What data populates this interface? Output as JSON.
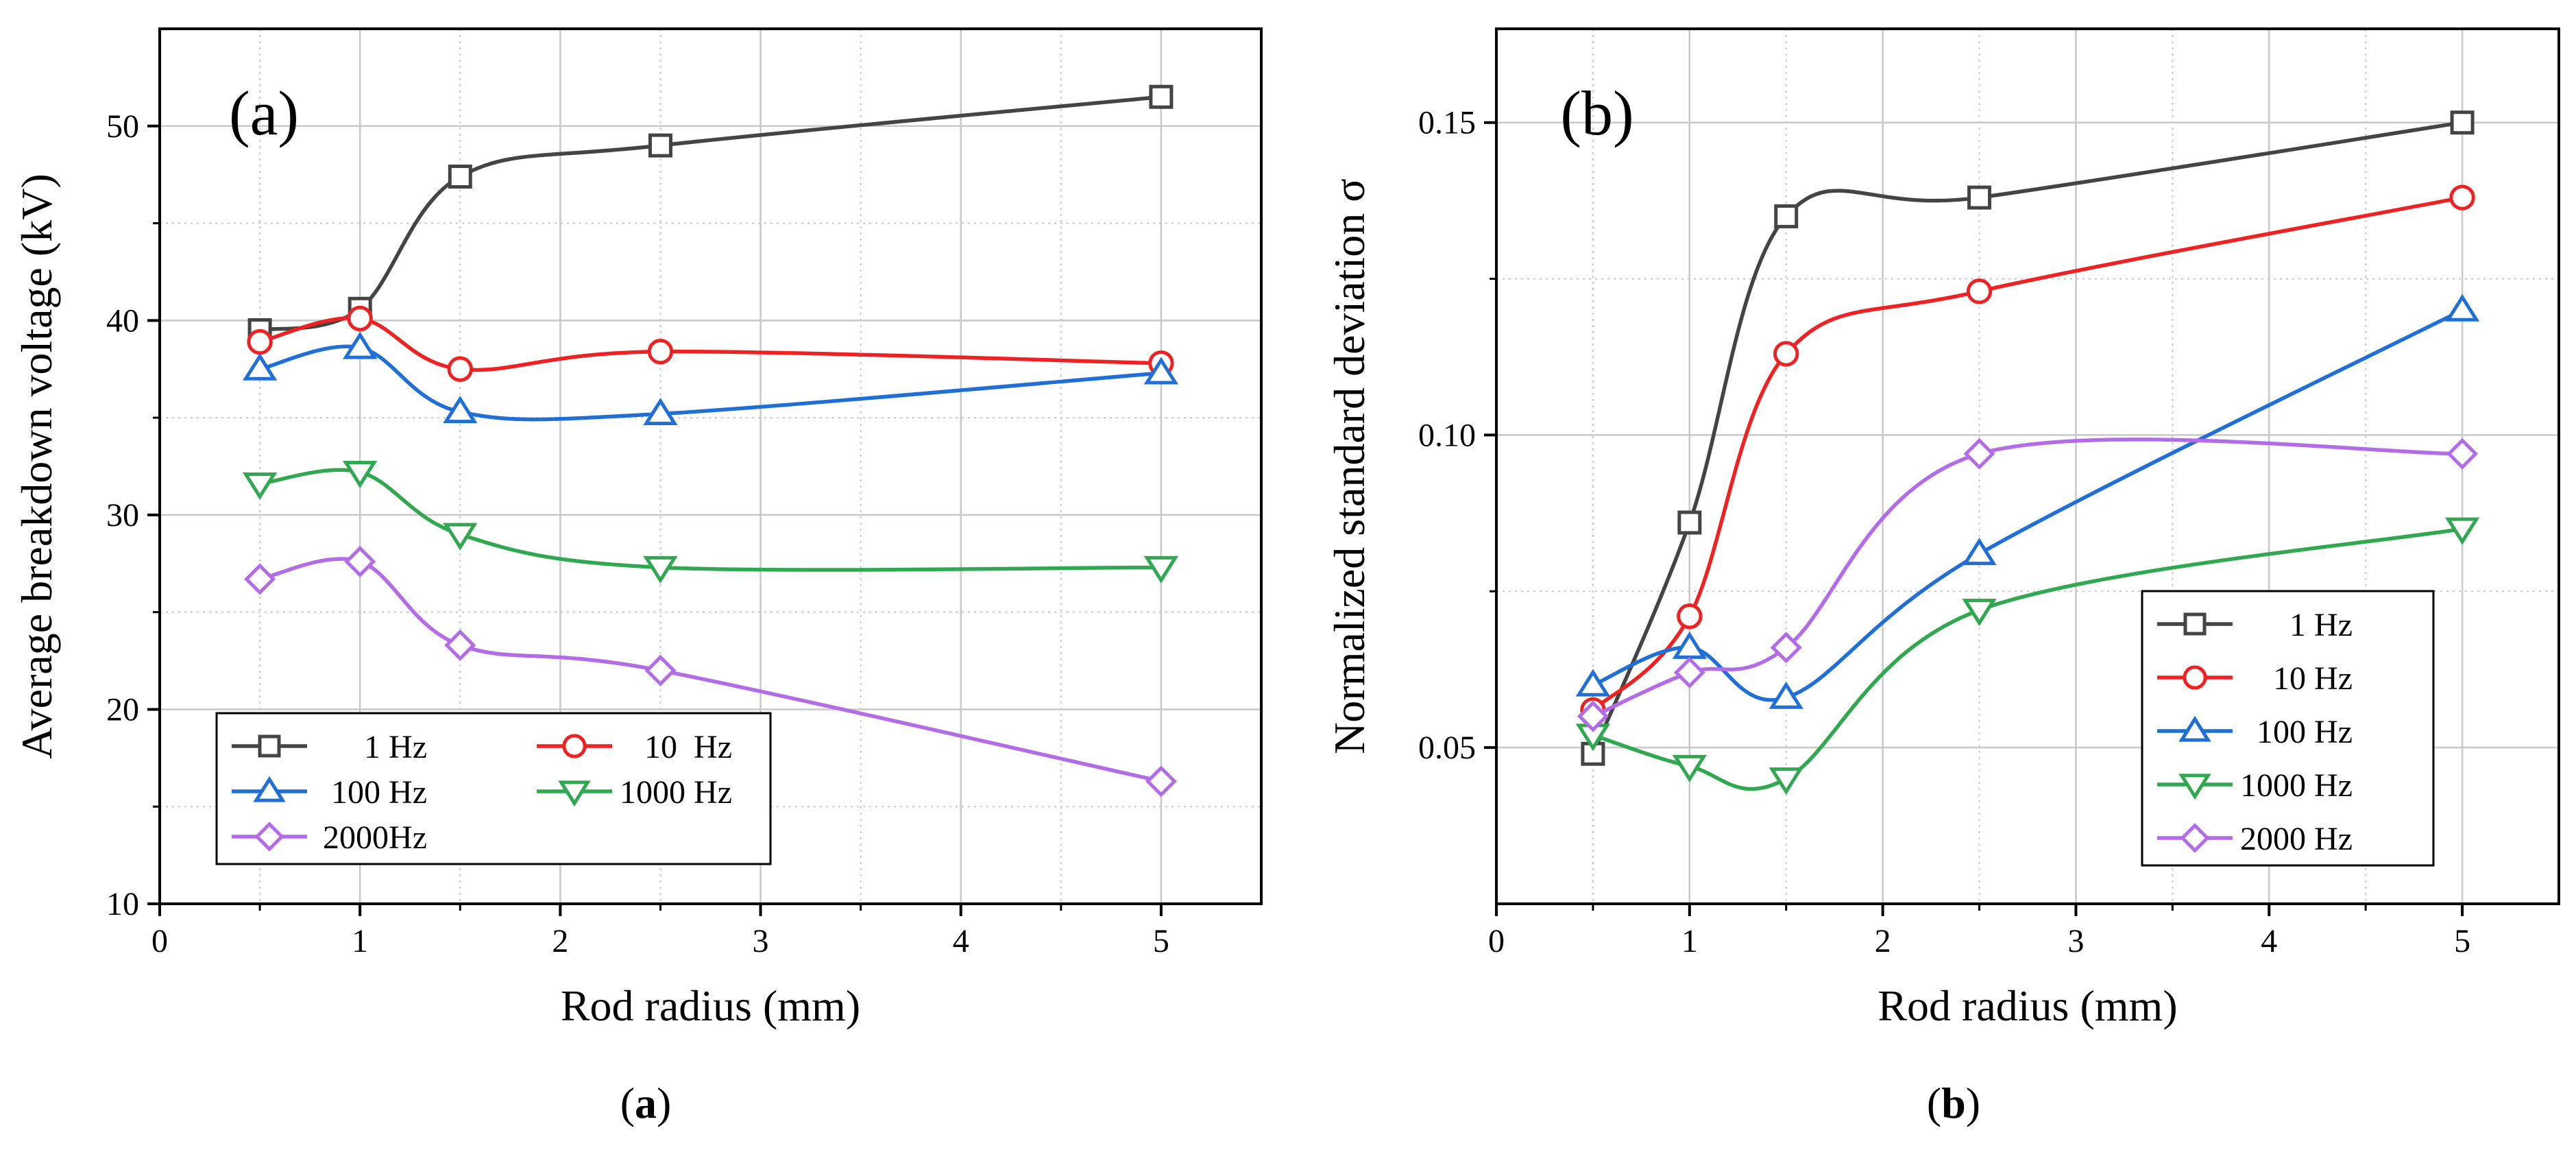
{
  "colors": {
    "1 Hz": "#444444",
    "10 Hz": "#ee2222",
    "100 Hz": "#1f6fd6",
    "1000 Hz": "#2fa84f",
    "2000 Hz": "#b36be8",
    "axis": "#000000",
    "grid": "#c8c8c8"
  },
  "chart_data": [
    {
      "type": "line",
      "panel_label": "(a)",
      "caption": "(a)",
      "title": "",
      "xlabel": "Rod radius (mm)",
      "ylabel": "Average breakdown voltage (kV)",
      "xlim": [
        0,
        5.5
      ],
      "ylim": [
        10,
        55
      ],
      "xticks": [
        0,
        1,
        2,
        3,
        4,
        5
      ],
      "yticks": [
        10,
        20,
        30,
        40,
        50
      ],
      "grid": true,
      "legend_position": "bottom-left",
      "x": [
        0.5,
        1,
        1.5,
        2.5,
        5
      ],
      "series": [
        {
          "name": "1 Hz",
          "legend_label": "1 Hz",
          "marker": "square",
          "values": [
            39.5,
            40.6,
            47.4,
            49.0,
            51.5
          ]
        },
        {
          "name": "10 Hz",
          "legend_label": "10  Hz",
          "marker": "circle",
          "values": [
            38.9,
            40.1,
            37.5,
            38.4,
            37.8
          ]
        },
        {
          "name": "100 Hz",
          "legend_label": "100 Hz",
          "marker": "triangle-up",
          "values": [
            37.5,
            38.6,
            35.3,
            35.2,
            37.3
          ]
        },
        {
          "name": "1000 Hz",
          "legend_label": "1000 Hz",
          "marker": "triangle-down",
          "values": [
            31.6,
            32.2,
            29.0,
            27.3,
            27.3
          ]
        },
        {
          "name": "2000 Hz",
          "legend_label": "2000Hz",
          "marker": "diamond",
          "values": [
            26.7,
            27.6,
            23.3,
            22.0,
            16.3
          ]
        }
      ]
    },
    {
      "type": "line",
      "panel_label": "(b)",
      "caption": "(b)",
      "title": "",
      "xlabel": "Rod radius (mm)",
      "ylabel": "Normalized standard deviation σ",
      "xlim": [
        0,
        5.5
      ],
      "ylim": [
        0.025,
        0.165
      ],
      "xticks": [
        0,
        1,
        2,
        3,
        4,
        5
      ],
      "yticks": [
        0.05,
        0.1,
        0.15
      ],
      "ytick_labels": [
        "0.05",
        "0.10",
        "0.15"
      ],
      "grid": true,
      "legend_position": "bottom-right",
      "x": [
        0.5,
        1,
        1.5,
        2.5,
        5
      ],
      "series": [
        {
          "name": "1 Hz",
          "legend_label": "1 Hz",
          "marker": "square",
          "values": [
            0.049,
            0.086,
            0.135,
            0.138,
            0.15
          ]
        },
        {
          "name": "10 Hz",
          "legend_label": "10 Hz",
          "marker": "circle",
          "values": [
            0.056,
            0.071,
            0.113,
            0.123,
            0.138
          ]
        },
        {
          "name": "100 Hz",
          "legend_label": "100 Hz",
          "marker": "triangle-up",
          "values": [
            0.06,
            0.066,
            0.058,
            0.081,
            0.12
          ]
        },
        {
          "name": "1000 Hz",
          "legend_label": "1000 Hz",
          "marker": "triangle-down",
          "values": [
            0.052,
            0.047,
            0.045,
            0.072,
            0.085
          ]
        },
        {
          "name": "2000 Hz",
          "legend_label": "2000 Hz",
          "marker": "diamond",
          "values": [
            0.055,
            0.062,
            0.066,
            0.097,
            0.097
          ]
        }
      ]
    }
  ]
}
